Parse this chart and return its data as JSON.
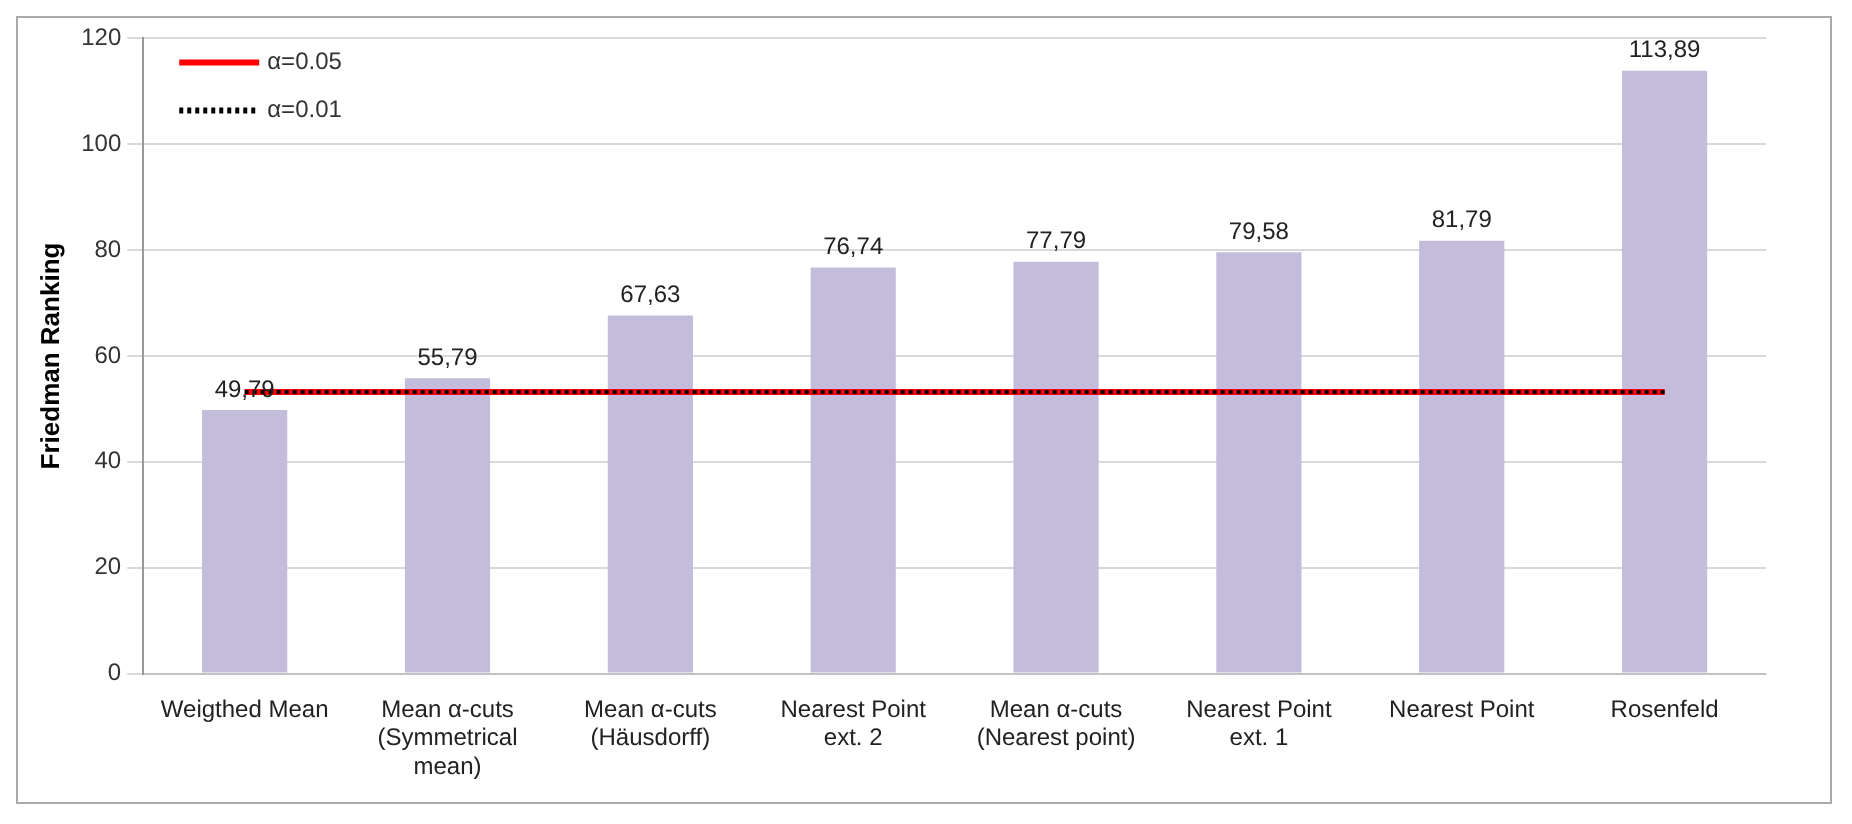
{
  "chart_data": {
    "type": "bar",
    "ylabel": "Friedman Ranking",
    "categories": [
      "Weigthed Mean",
      "Mean α-cuts\n(Symmetrical\nmean)",
      "Mean α-cuts\n(Häusdorff)",
      "Nearest Point\next. 2",
      "Mean α-cuts\n(Nearest point)",
      "Nearest Point\next. 1",
      "Nearest Point",
      "Rosenfeld"
    ],
    "series": [
      {
        "color": "#c3bcdb",
        "values": [
          49.79,
          55.79,
          67.63,
          76.74,
          77.79,
          79.58,
          81.79,
          113.89
        ],
        "value_labels": [
          "49,79",
          "55,79",
          "67,63",
          "76,74",
          "77,79",
          "79,58",
          "81,79",
          "113,89"
        ]
      },
      {
        "type": "line",
        "name": "α=0.05",
        "color": "#ff0000",
        "line_style": "solid",
        "values": [
          53.2,
          53.2,
          53.2,
          53.2,
          53.2,
          53.2,
          53.2,
          53.2
        ]
      },
      {
        "type": "line",
        "name": "α=0.01",
        "color": "#000000",
        "line_style": "dotted",
        "values": [
          53.2,
          53.2,
          53.2,
          53.2,
          53.2,
          53.2,
          53.2,
          53.2
        ]
      }
    ],
    "ylim": [
      0,
      120
    ],
    "yticks": [
      0,
      20,
      40,
      60,
      80,
      100,
      120
    ],
    "grid": "y",
    "legend": "top left",
    "marker": "none"
  }
}
